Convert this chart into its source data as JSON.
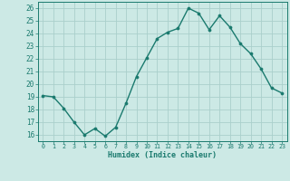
{
  "x": [
    0,
    1,
    2,
    3,
    4,
    5,
    6,
    7,
    8,
    9,
    10,
    11,
    12,
    13,
    14,
    15,
    16,
    17,
    18,
    19,
    20,
    21,
    22,
    23
  ],
  "y": [
    19.1,
    19.0,
    18.1,
    17.0,
    16.0,
    16.5,
    15.9,
    16.6,
    18.5,
    20.6,
    22.1,
    23.6,
    24.1,
    24.4,
    26.0,
    25.6,
    24.3,
    25.4,
    24.5,
    23.2,
    22.4,
    21.2,
    19.7,
    19.3
  ],
  "line_color": "#1a7a6e",
  "marker_color": "#1a7a6e",
  "bg_color": "#cce9e5",
  "grid_color": "#aacfcb",
  "axis_color": "#1a7a6e",
  "xlabel": "Humidex (Indice chaleur)",
  "ylim": [
    15.5,
    26.5
  ],
  "xlim": [
    -0.5,
    23.5
  ],
  "yticks": [
    16,
    17,
    18,
    19,
    20,
    21,
    22,
    23,
    24,
    25,
    26
  ],
  "xticks": [
    0,
    1,
    2,
    3,
    4,
    5,
    6,
    7,
    8,
    9,
    10,
    11,
    12,
    13,
    14,
    15,
    16,
    17,
    18,
    19,
    20,
    21,
    22,
    23
  ]
}
